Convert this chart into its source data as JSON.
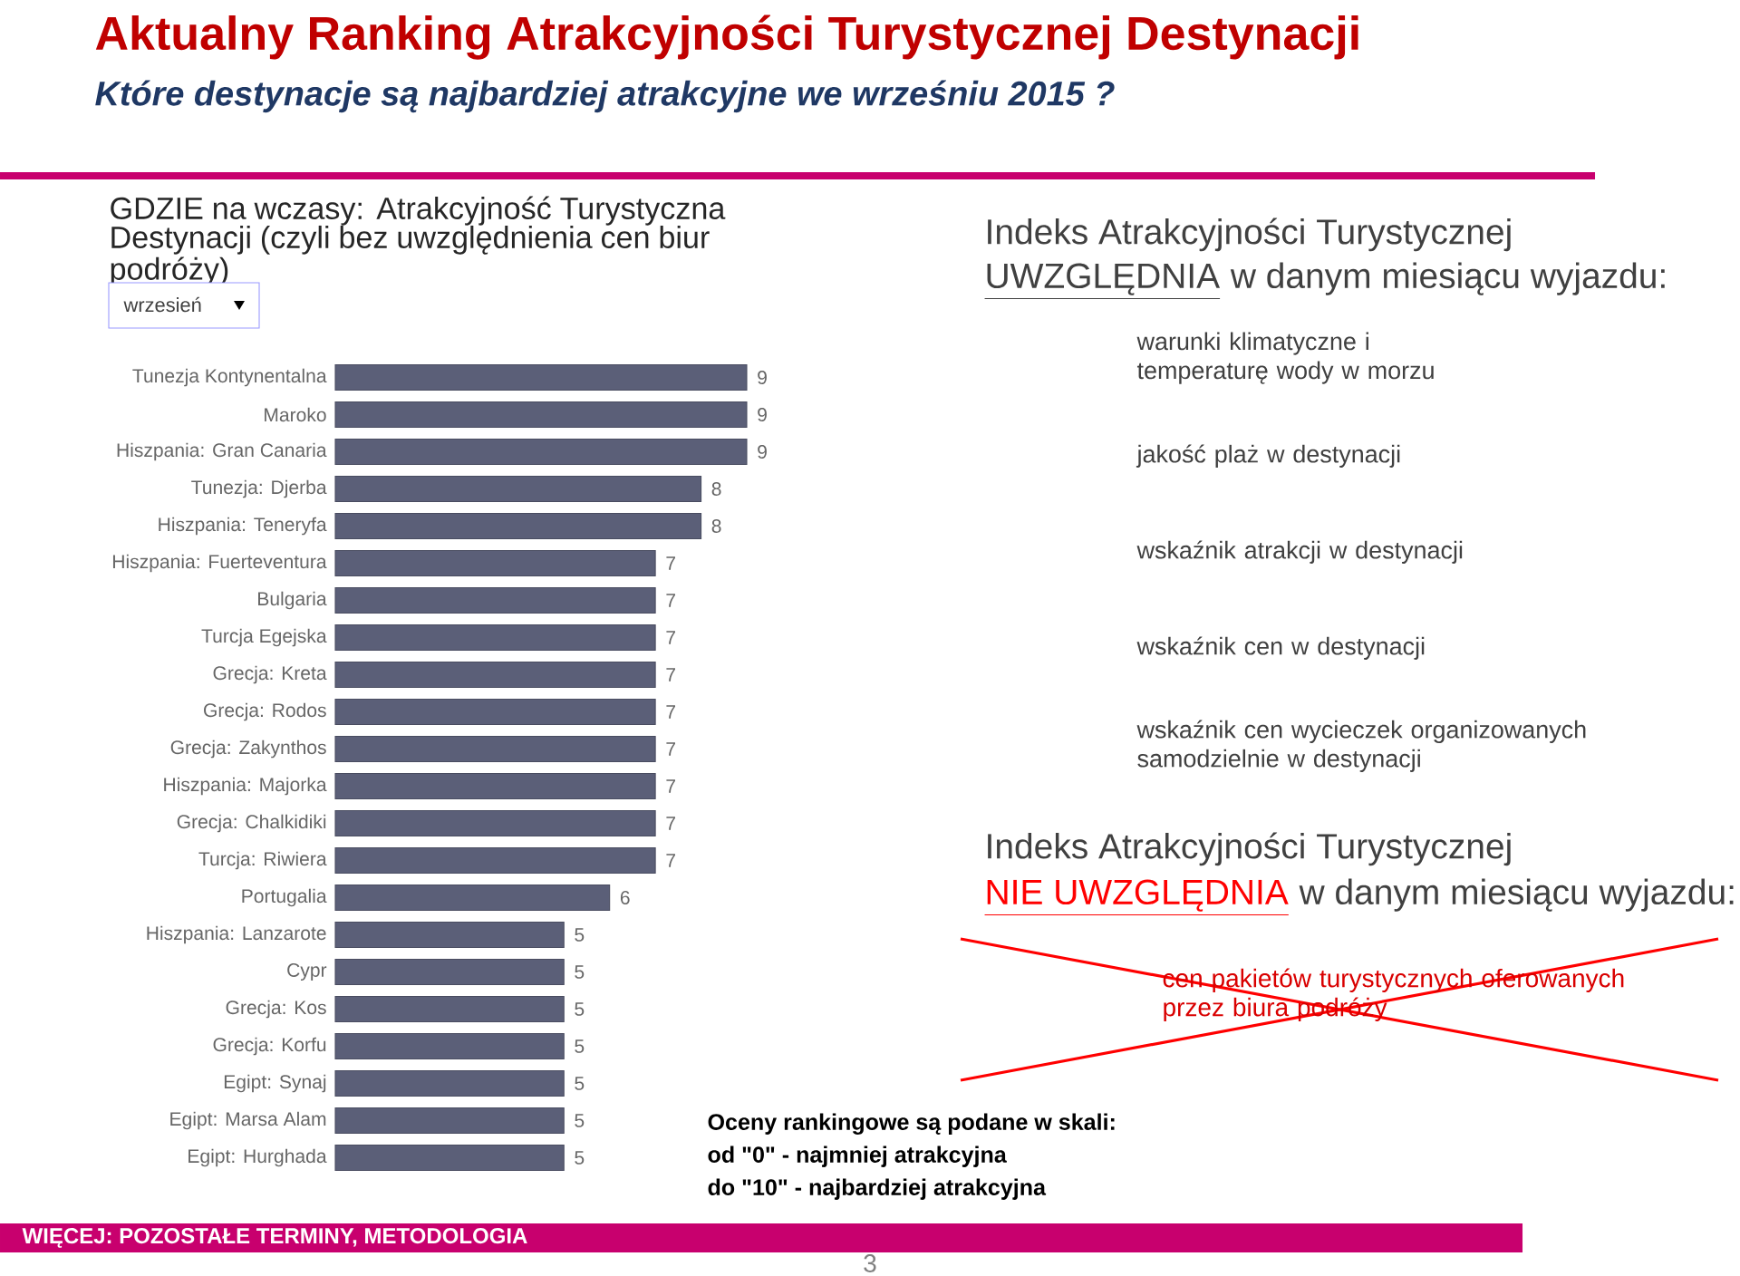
{
  "chart_data": {
    "type": "bar",
    "orientation": "horizontal",
    "title": "Aktualny Ranking Atrakcyjności Turystycznej Destynacji",
    "subtitle": "Które destynacje są najbardziej atrakcyjne we wrześniu 2015 ?",
    "categories": [
      "Tunezja Kontynentalna",
      "Maroko",
      "Hiszpania: Gran Canaria",
      "Tunezja: Djerba",
      "Hiszpania: Teneryfa",
      "Hiszpania: Fuerteventura",
      "Bulgaria",
      "Turcja Egejska",
      "Grecja: Kreta",
      "Grecja: Rodos",
      "Grecja: Zakynthos",
      "Hiszpania: Majorka",
      "Grecja: Chalkidiki",
      "Turcja: Riwiera",
      "Portugalia",
      "Hiszpania: Lanzarote",
      "Cypr",
      "Grecja: Kos",
      "Grecja: Korfu",
      "Egipt: Synaj",
      "Egipt: Marsa Alam",
      "Egipt: Hurghada"
    ],
    "values": [
      9,
      9,
      9,
      8,
      8,
      7,
      7,
      7,
      7,
      7,
      7,
      7,
      7,
      7,
      6,
      5,
      5,
      5,
      5,
      5,
      5,
      5
    ],
    "color": "#5b5f78",
    "data_labels": true,
    "annotations": [
      "GDZIE na wczasy: Atrakcyjność Turystyczna Destynacji (czyli bez uwzględnienia cen biur podróży)",
      "wrzesień",
      "Indeks Atrakcyjności Turystycznej",
      "UWZGLĘDNIA",
      "w danym miesiącu wyjazdu:",
      "warunki klimatyczne i temperaturę wody w morzu",
      "jakość plaż w destynacji",
      "wskaźnik atrakcji w destynacji",
      "wskaźnik cen w destynacji",
      "wskaźnik cen wycieczek organizowanych samodzielnie w destynacji",
      "Indeks Atrakcyjności Turystycznej",
      "NIE UWZGLĘDNIA",
      "w danym miesiącu wyjazdu:",
      "cen pakietów turystycznych oferowanych przez biura podróży",
      "Oceny rankingowe są podane w skali:",
      "od \"0\" - najmniej atrakcyjna",
      "do \"10\" - najbardziej atrakcyjna",
      "WIĘCEJ: POZOSTAŁE TERMINY, METODOLOGIA",
      "3"
    ]
  }
}
